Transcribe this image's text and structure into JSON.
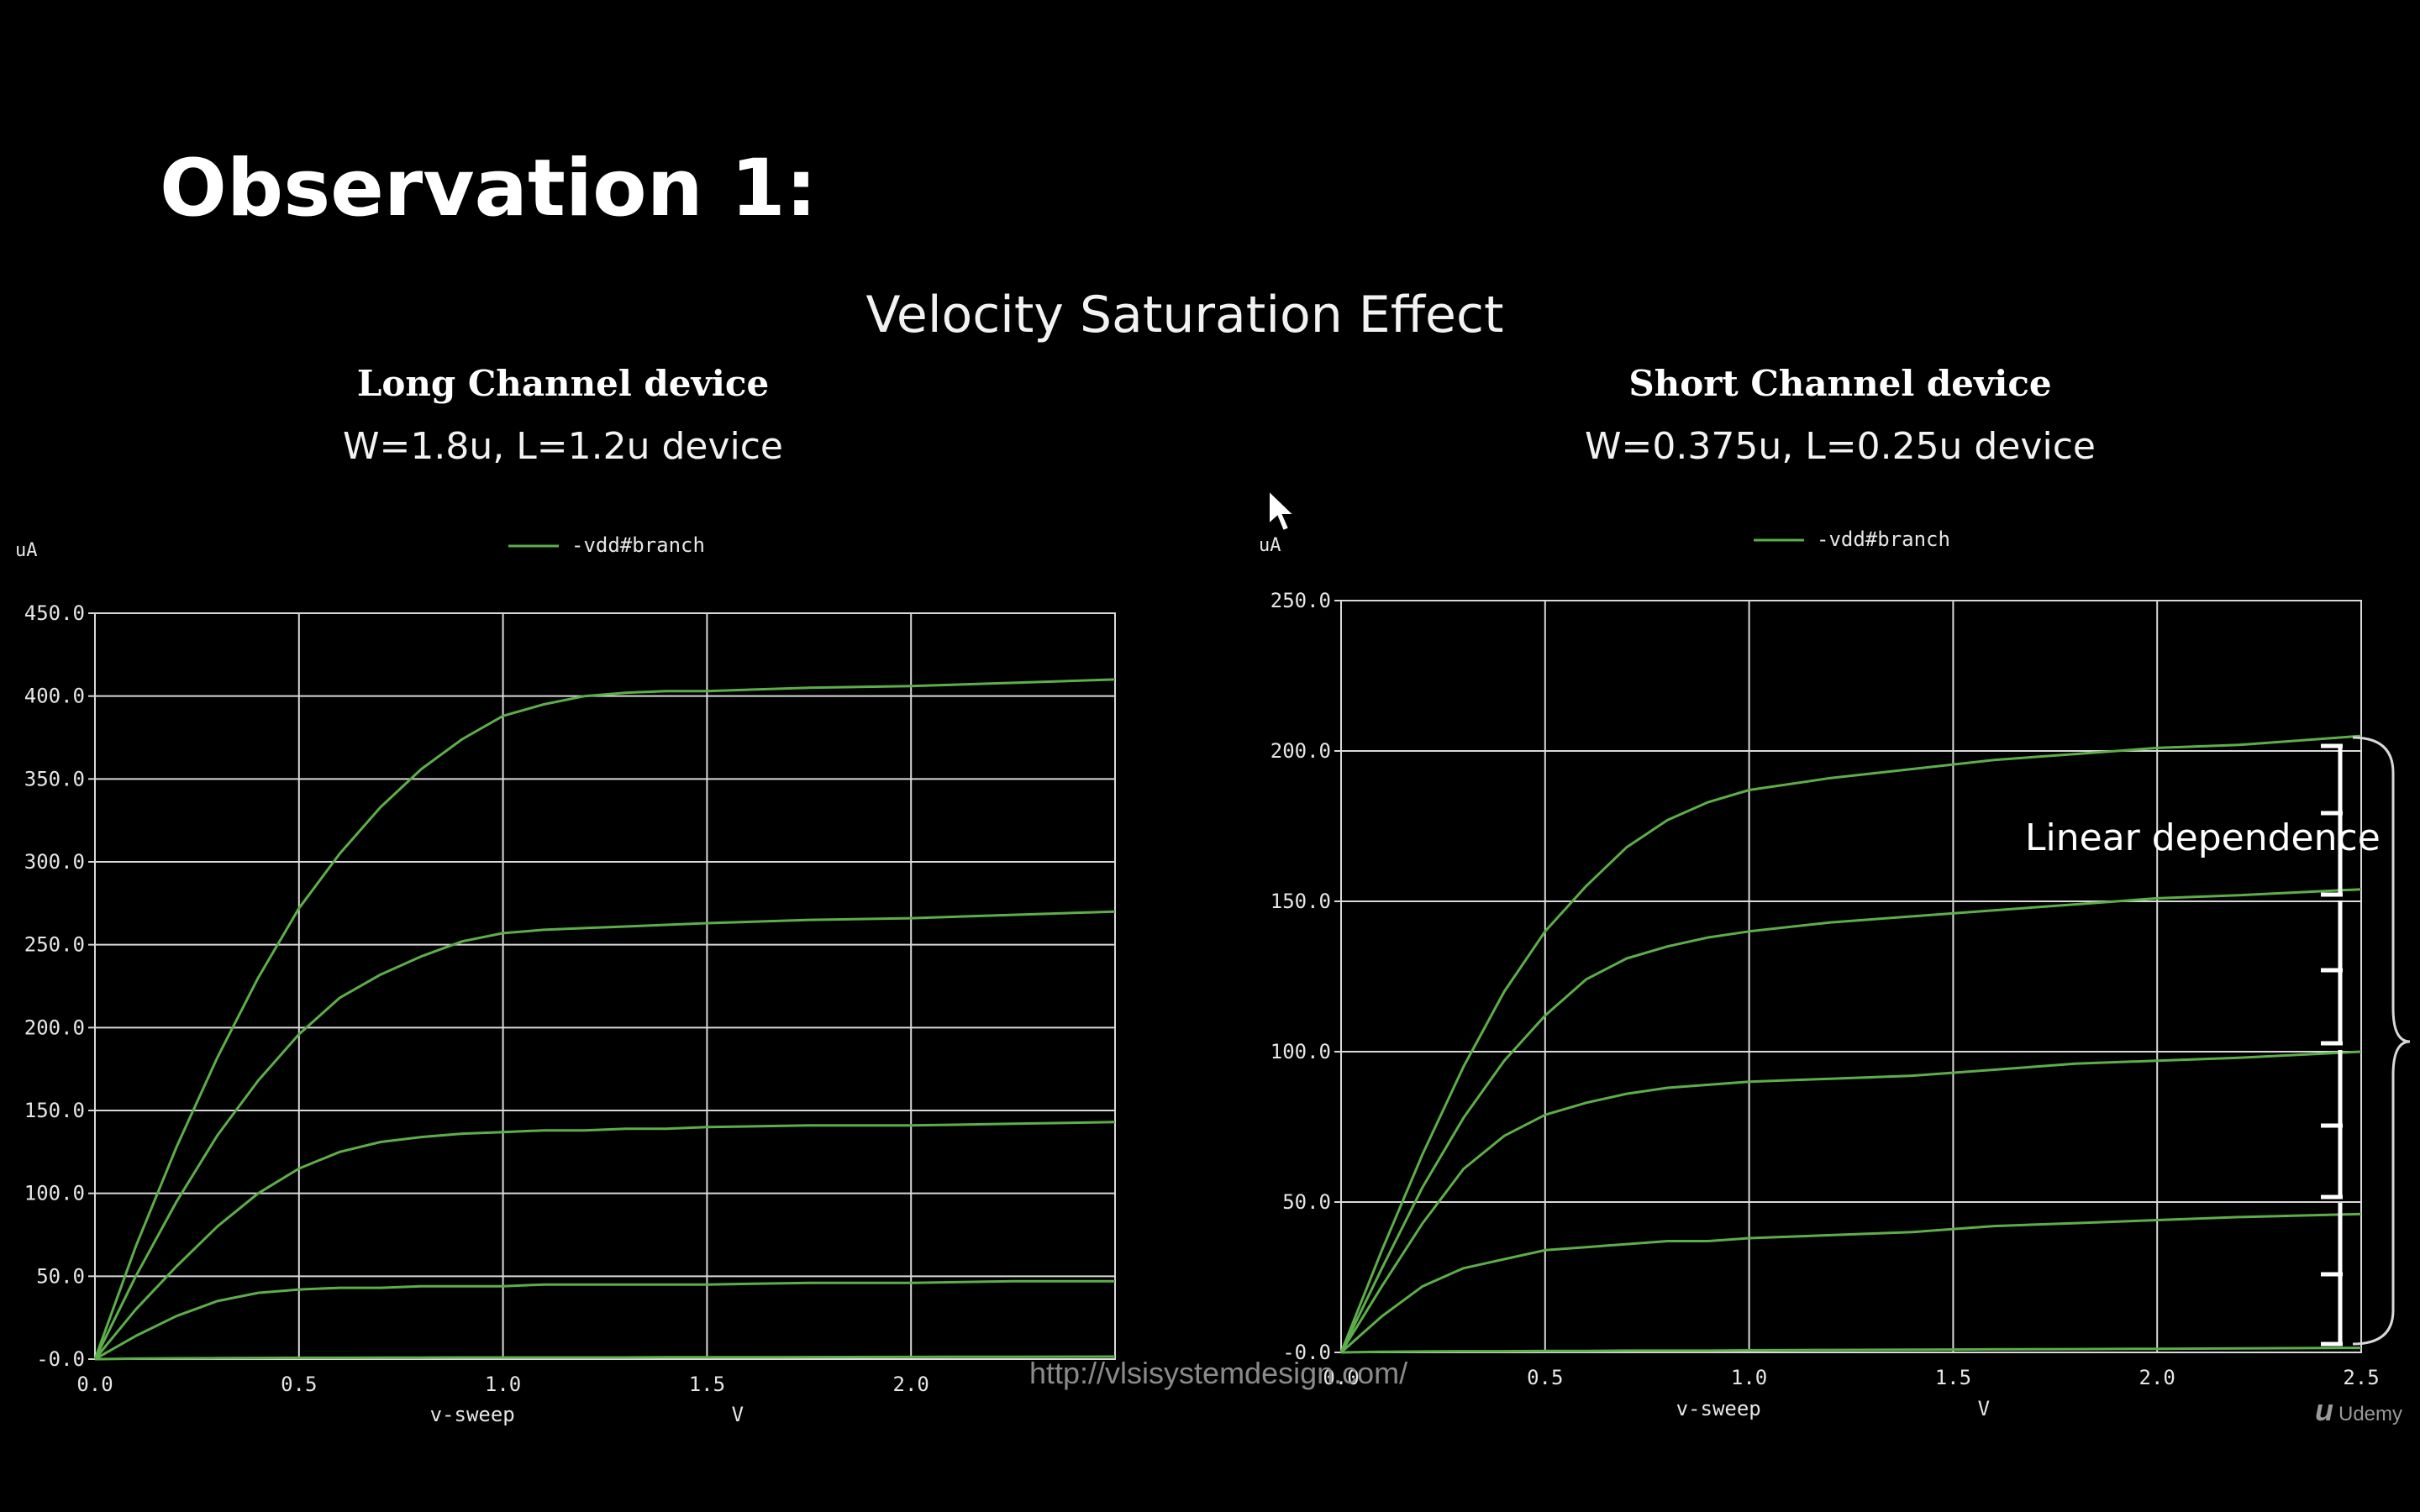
{
  "slide": {
    "heading": "Observation 1:",
    "subtitle": "Velocity Saturation Effect",
    "url": "http://vlsisystemdesign.com/",
    "logo": "Udemy",
    "logo_mark": "u",
    "cursor_icon": "mouse-pointer-icon"
  },
  "long_channel": {
    "title": "Long Channel device",
    "spec": "W=1.8u, L=1.2u device"
  },
  "short_channel": {
    "title": "Short Channel device",
    "spec": "W=0.375u, L=0.25u device",
    "annotation": "Linear dependence"
  },
  "chart_data": [
    {
      "type": "line",
      "ylabel": "uA",
      "xlabel": "v-sweep",
      "xunit": "V",
      "legend": "-vdd#branch",
      "legend_position": "top-center",
      "grid": true,
      "xlim": [
        0,
        2.5
      ],
      "ylim": [
        0,
        450
      ],
      "xticks": [
        "0.0",
        "0.5",
        "1.0",
        "1.5",
        "2.0"
      ],
      "yticks": [
        "-0.0",
        "50.0",
        "100.0",
        "150.0",
        "200.0",
        "250.0",
        "300.0",
        "350.0",
        "400.0",
        "450.0"
      ],
      "x": [
        0,
        0.1,
        0.2,
        0.3,
        0.4,
        0.5,
        0.6,
        0.7,
        0.8,
        0.9,
        1.0,
        1.1,
        1.2,
        1.3,
        1.4,
        1.5,
        1.75,
        2.0,
        2.25,
        2.5
      ],
      "series": [
        {
          "values": [
            0,
            68,
            128,
            182,
            230,
            272,
            305,
            333,
            356,
            374,
            388,
            395,
            400,
            402,
            403,
            403,
            405,
            406,
            408,
            410
          ]
        },
        {
          "values": [
            0,
            50,
            95,
            135,
            168,
            196,
            218,
            232,
            243,
            252,
            257,
            259,
            260,
            261,
            262,
            263,
            265,
            266,
            268,
            270
          ]
        },
        {
          "values": [
            0,
            30,
            56,
            80,
            100,
            115,
            125,
            131,
            134,
            136,
            137,
            138,
            138,
            139,
            139,
            140,
            141,
            141,
            142,
            143
          ]
        },
        {
          "values": [
            0,
            14,
            26,
            35,
            40,
            42,
            43,
            43,
            44,
            44,
            44,
            45,
            45,
            45,
            45,
            45,
            46,
            46,
            47,
            47
          ]
        },
        {
          "values": [
            0,
            0.3,
            0.5,
            0.6,
            0.7,
            0.8,
            0.8,
            0.9,
            0.9,
            1,
            1,
            1,
            1,
            1,
            1.1,
            1.1,
            1.2,
            1.3,
            1.4,
            1.5
          ]
        }
      ]
    },
    {
      "type": "line",
      "ylabel": "uA",
      "xlabel": "v-sweep",
      "xunit": "V",
      "legend": "-vdd#branch",
      "legend_position": "top-center",
      "grid": true,
      "xlim": [
        0,
        2.5
      ],
      "ylim": [
        0,
        250
      ],
      "xticks": [
        "0.0",
        "0.5",
        "1.0",
        "1.5",
        "2.0",
        "2.5"
      ],
      "yticks": [
        "-0.0",
        "50.0",
        "100.0",
        "150.0",
        "200.0",
        "250.0"
      ],
      "x": [
        0,
        0.1,
        0.2,
        0.3,
        0.4,
        0.5,
        0.6,
        0.7,
        0.8,
        0.9,
        1.0,
        1.2,
        1.4,
        1.6,
        1.8,
        2.0,
        2.2,
        2.5
      ],
      "series": [
        {
          "values": [
            0,
            34,
            66,
            95,
            120,
            140,
            155,
            168,
            177,
            183,
            187,
            191,
            194,
            197,
            199,
            201,
            202,
            205
          ]
        },
        {
          "values": [
            0,
            28,
            55,
            78,
            97,
            112,
            124,
            131,
            135,
            138,
            140,
            143,
            145,
            147,
            149,
            151,
            152,
            154
          ]
        },
        {
          "values": [
            0,
            22,
            43,
            61,
            72,
            79,
            83,
            86,
            88,
            89,
            90,
            91,
            92,
            94,
            96,
            97,
            98,
            100
          ]
        },
        {
          "values": [
            0,
            12,
            22,
            28,
            31,
            34,
            35,
            36,
            37,
            37,
            38,
            39,
            40,
            42,
            43,
            44,
            45,
            46
          ]
        },
        {
          "values": [
            0,
            0.2,
            0.3,
            0.4,
            0.4,
            0.5,
            0.5,
            0.6,
            0.6,
            0.6,
            0.7,
            0.8,
            0.9,
            1.0,
            1.1,
            1.2,
            1.3,
            1.5
          ]
        }
      ]
    }
  ]
}
